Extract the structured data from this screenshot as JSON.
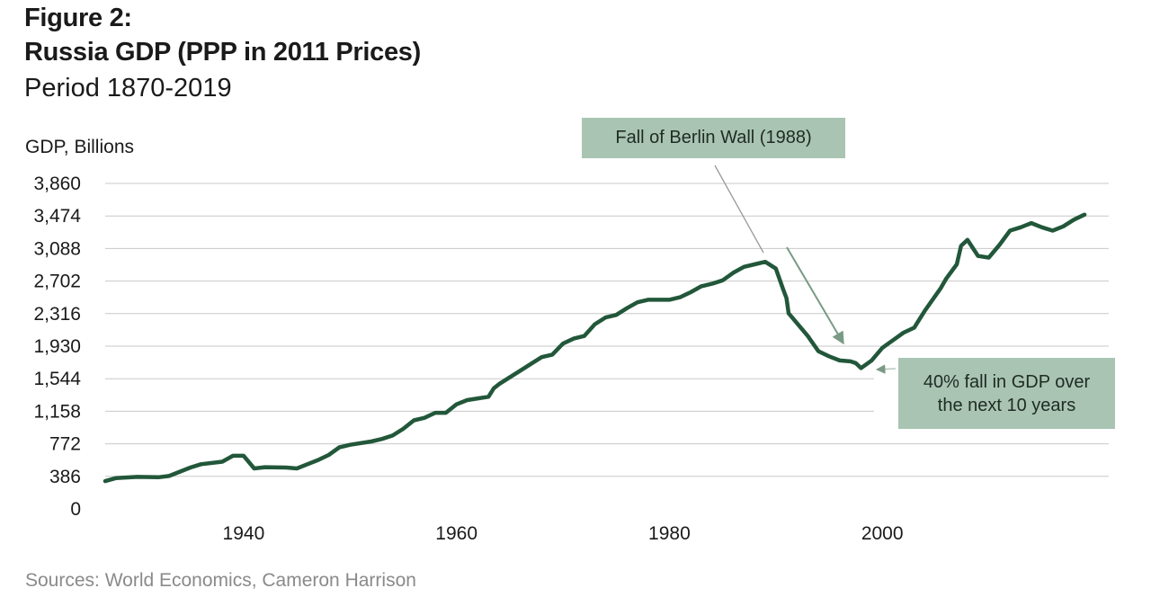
{
  "header": {
    "figure_label": "Figure 2:",
    "title": "Russia GDP (PPP in 2011 Prices)",
    "subtitle": "Period 1870-2019"
  },
  "source": "Sources: World Economics, Cameron Harrison",
  "colors": {
    "line": "#22573a",
    "grid": "#c8c8c8",
    "annotation_box": "#a9c4b3",
    "arrow": "#7a9a86"
  },
  "chart_data": {
    "type": "line",
    "ylabel": "GDP, Billions",
    "xlabel": "",
    "y_ticks": [
      0,
      386,
      772,
      1158,
      1544,
      1930,
      2316,
      2702,
      3088,
      3474,
      3860
    ],
    "ylim": [
      0,
      3860
    ],
    "x_ticks": [
      1940,
      1960,
      1980,
      2000
    ],
    "xlim": [
      1927,
      2021
    ],
    "grid": "horizontal",
    "series": [
      {
        "x": [
          1927,
          1928,
          1930,
          1932,
          1933,
          1935,
          1936,
          1938,
          1939,
          1940,
          1941,
          1942,
          1944,
          1945,
          1946,
          1947,
          1948,
          1949,
          1950,
          1952,
          1953,
          1954,
          1955,
          1956,
          1957,
          1958,
          1959,
          1960,
          1961,
          1962,
          1963,
          1963.5,
          1964,
          1965,
          1966,
          1967,
          1968,
          1969,
          1970,
          1971,
          1972,
          1973,
          1974,
          1975,
          1976,
          1977,
          1978,
          1979,
          1980,
          1981,
          1982,
          1983,
          1984,
          1985,
          1986,
          1987,
          1988,
          1989,
          1990,
          1990.7,
          1991,
          1991.2,
          1992,
          1993,
          1994,
          1995,
          1996,
          1997,
          1997.5,
          1998,
          1999,
          2000,
          2001,
          2002,
          2003,
          2004,
          2005,
          2005.5,
          2006,
          2007,
          2007.4,
          2008,
          2009,
          2010,
          2011,
          2012,
          2013,
          2014,
          2015,
          2016,
          2017,
          2018,
          2019
        ],
        "values": [
          330,
          365,
          380,
          375,
          390,
          490,
          530,
          560,
          630,
          630,
          480,
          495,
          490,
          480,
          530,
          580,
          640,
          730,
          760,
          800,
          830,
          870,
          950,
          1050,
          1080,
          1140,
          1140,
          1240,
          1290,
          1310,
          1330,
          1430,
          1480,
          1560,
          1640,
          1720,
          1800,
          1830,
          1960,
          2020,
          2050,
          2190,
          2270,
          2300,
          2380,
          2450,
          2480,
          2480,
          2480,
          2510,
          2570,
          2640,
          2670,
          2710,
          2800,
          2870,
          2900,
          2930,
          2850,
          2600,
          2500,
          2320,
          2200,
          2050,
          1870,
          1810,
          1760,
          1750,
          1730,
          1670,
          1760,
          1910,
          2000,
          2090,
          2150,
          2350,
          2530,
          2620,
          2730,
          2900,
          3120,
          3190,
          3000,
          2980,
          3130,
          3300,
          3340,
          3390,
          3340,
          3300,
          3350,
          3430,
          3490
        ]
      }
    ],
    "annotations": [
      {
        "text": "Fall of Berlin Wall (1988)"
      },
      {
        "text": "40% fall in GDP over the next 10 years"
      }
    ]
  }
}
